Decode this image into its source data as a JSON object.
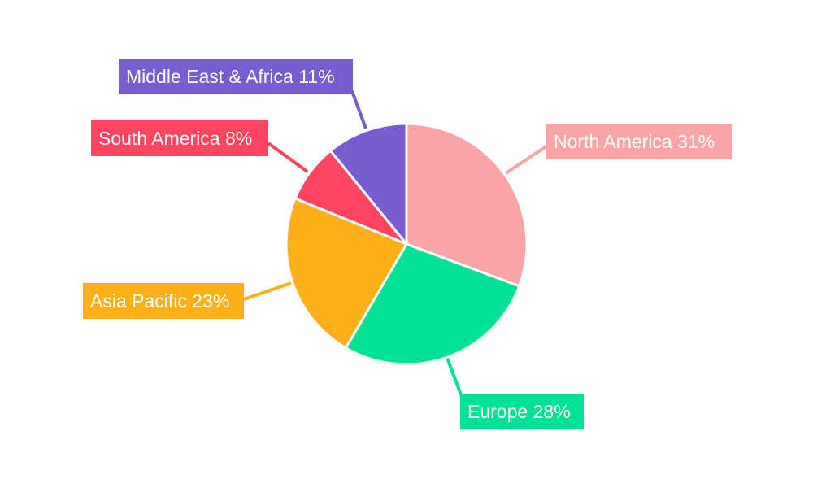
{
  "chart_data": {
    "type": "pie",
    "title": "",
    "start_angle": "top, clockwise",
    "legend": "none (leader-line labels)",
    "slices": [
      {
        "label": "North America",
        "value": 31,
        "display": "North America 31%",
        "color": "#f9a5a8"
      },
      {
        "label": "Europe",
        "value": 28,
        "display": "Europe 28%",
        "color": "#00e396"
      },
      {
        "label": "Asia Pacific",
        "value": 23,
        "display": "Asia Pacific 23%",
        "color": "#feb019"
      },
      {
        "label": "South America",
        "value": 8,
        "display": "South America 8%",
        "color": "#ff4560"
      },
      {
        "label": "Middle East & Africa",
        "value": 11,
        "display": "Middle East & Africa 11%",
        "color": "#775dd0"
      }
    ]
  }
}
